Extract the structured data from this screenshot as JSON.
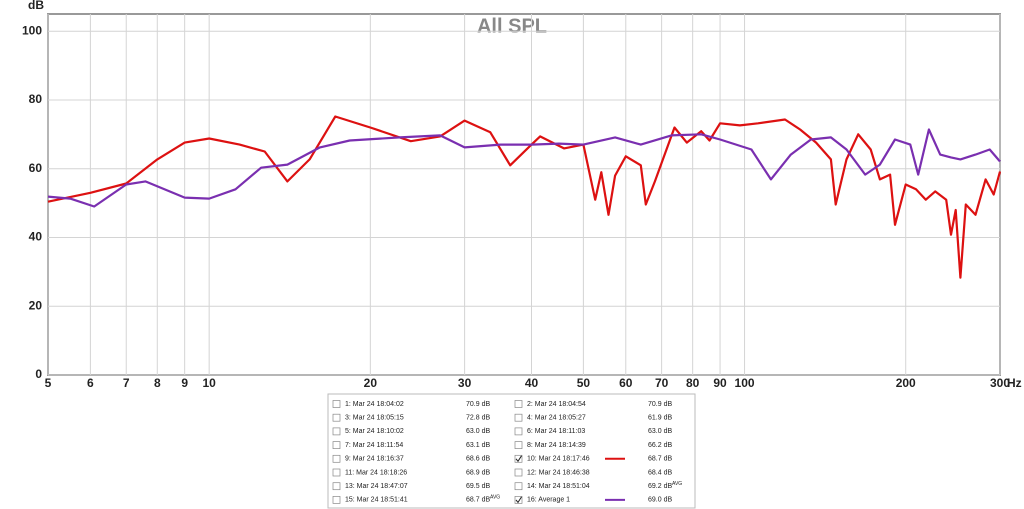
{
  "chart_data": {
    "type": "line",
    "title": "All SPL",
    "y_label": "dB",
    "x_label": "Hz",
    "xlim": [
      5,
      300
    ],
    "ylim": [
      0,
      105
    ],
    "log_x": true,
    "grid": true,
    "xticks": [
      5,
      6,
      7,
      8,
      9,
      10,
      20,
      30,
      40,
      50,
      60,
      70,
      80,
      90,
      100,
      200,
      300
    ],
    "yticks": [
      0,
      20,
      40,
      60,
      80,
      100
    ],
    "series": [
      {
        "name": "1: Mar 24 18:04:02",
        "value_label": "70.9 dB",
        "color": "#2a9a8a",
        "checked": false
      },
      {
        "name": "2: Mar 24 18:04:54",
        "value_label": "70.9 dB",
        "color": "#2a8a9a",
        "checked": false
      },
      {
        "name": "3: Mar 24 18:05:15",
        "value_label": "72.8 dB",
        "color": "#a01515",
        "checked": false
      },
      {
        "name": "4: Mar 24 18:05:27",
        "value_label": "61.9 dB",
        "color": "#d08a00",
        "checked": false
      },
      {
        "name": "5: Mar 24 18:10:02",
        "value_label": "63.0 dB",
        "color": "#2a8a7a",
        "checked": false
      },
      {
        "name": "6: Mar 24 18:11:03",
        "value_label": "63.0 dB",
        "color": "#2a9a8a",
        "checked": false
      },
      {
        "name": "7: Mar 24 18:11:54",
        "value_label": "63.1 dB",
        "color": "#2a7a2a",
        "checked": false
      },
      {
        "name": "8: Mar 24 18:14:39",
        "value_label": "66.2 dB",
        "color": "#334477",
        "checked": false
      },
      {
        "name": "9: Mar 24 18:16:37",
        "value_label": "68.6 dB",
        "color": "#33bb33",
        "checked": false
      },
      {
        "name": "10: Mar 24 18:17:46",
        "value_label": "68.7 dB",
        "color": "#dd1111",
        "checked": true,
        "x": [
          5,
          6,
          7,
          8,
          9,
          10,
          11.4,
          12.7,
          14,
          15.4,
          17.2,
          20,
          23.8,
          27,
          30,
          33.5,
          36.5,
          40,
          41.5,
          46,
          50,
          52.6,
          54,
          55.7,
          57.3,
          60,
          64,
          65.4,
          68,
          74,
          78,
          83,
          86,
          90,
          98,
          106,
          119,
          127,
          136,
          145,
          148,
          155,
          163,
          172,
          179,
          187,
          191,
          200,
          209,
          218,
          227,
          238,
          243,
          248,
          253,
          259,
          270,
          282,
          292,
          300
        ],
        "values": [
          50.4,
          53,
          55.7,
          62.7,
          67.6,
          68.8,
          67,
          65,
          56.3,
          62.7,
          75.2,
          72,
          68,
          69.4,
          74,
          70.6,
          61,
          67,
          69.4,
          65.9,
          67,
          51,
          59,
          46.6,
          58,
          63.6,
          61,
          49.6,
          56.3,
          72,
          67.6,
          70.9,
          68.2,
          73.2,
          72.6,
          73.2,
          74.3,
          71.4,
          67.6,
          62.7,
          49.6,
          62.7,
          70,
          65.6,
          56.9,
          58.3,
          43.7,
          55.4,
          54,
          51,
          53.4,
          51,
          40.8,
          48,
          28.3,
          49.6,
          46.6,
          56.9,
          52.5,
          59.2
        ]
      },
      {
        "name": "11: Mar 24 18:18:26",
        "value_label": "68.9 dB",
        "color": "#aa2222",
        "checked": false
      },
      {
        "name": "12: Mar 24 18:46:38",
        "value_label": "68.4 dB",
        "color": "#445588",
        "checked": false
      },
      {
        "name": "13: Mar 24 18:47:07",
        "value_label": "69.5 dB",
        "color": "#8822aa",
        "checked": false
      },
      {
        "name": "14: Mar 24 18:51:04",
        "value_label": "69.2 dB",
        "suffix": "AVG",
        "color": "#cc8800",
        "checked": false
      },
      {
        "name": "15: Mar 24 18:51:41",
        "value_label": "68.7 dB",
        "suffix": "AVG",
        "color": "#228822",
        "checked": false
      },
      {
        "name": "16: Average 1",
        "value_label": "69.0 dB",
        "color": "#7a2fb0",
        "checked": true,
        "x": [
          5,
          5.5,
          6.1,
          7,
          7.6,
          9,
          10,
          11.2,
          12.5,
          14,
          16.1,
          18.3,
          22.7,
          27,
          30,
          35,
          40,
          45,
          50,
          57.3,
          64,
          73,
          83,
          90,
          103,
          112,
          122,
          133,
          145,
          155,
          168,
          179,
          191,
          204,
          211,
          221,
          232,
          243,
          253,
          270,
          287,
          300
        ],
        "values": [
          51.9,
          51.3,
          49,
          55.4,
          56.3,
          51.6,
          51.3,
          54,
          60.3,
          61.2,
          66.2,
          68.2,
          69.1,
          69.7,
          66.2,
          67,
          67,
          67.3,
          67,
          69.1,
          67,
          69.7,
          70,
          68.5,
          65.6,
          56.9,
          64.1,
          68.5,
          69.1,
          65.6,
          58.3,
          61.2,
          68.5,
          67,
          58.3,
          71.4,
          64.1,
          63.3,
          62.7,
          64.1,
          65.6,
          62.1
        ]
      }
    ]
  }
}
